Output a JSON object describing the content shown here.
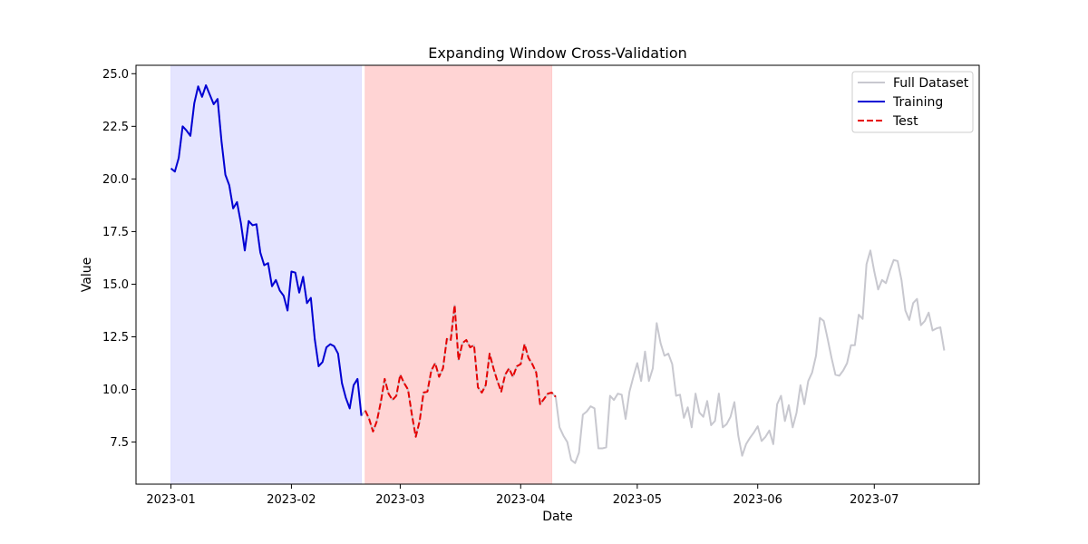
{
  "chart_data": {
    "type": "line",
    "title": "Expanding Window Cross-Validation",
    "xlabel": "Date",
    "ylabel": "Value",
    "ylim": [
      5.5,
      25.4
    ],
    "xlim": [
      "2022-12-23",
      "2023-07-28"
    ],
    "x_ticks": [
      "2023-01-01",
      "2023-02-01",
      "2023-03-01",
      "2023-04-01",
      "2023-05-01",
      "2023-06-01",
      "2023-07-01"
    ],
    "x_tick_labels": [
      "2023-01",
      "2023-02",
      "2023-03",
      "2023-04",
      "2023-05",
      "2023-06",
      "2023-07"
    ],
    "y_ticks": [
      7.5,
      10.0,
      12.5,
      15.0,
      17.5,
      20.0,
      22.5,
      25.0
    ],
    "y_tick_labels": [
      "7.5",
      "10.0",
      "12.5",
      "15.0",
      "17.5",
      "20.0",
      "22.5",
      "25.0"
    ],
    "grid": false,
    "legend_position": "top-right",
    "start_date": "2023-01-01",
    "spans": [
      {
        "name": "training-span",
        "start": "2023-01-01",
        "end": "2023-02-19",
        "color": "#e0e0ff"
      },
      {
        "name": "test-span",
        "start": "2023-02-20",
        "end": "2023-04-09",
        "color": "#ffcccc"
      }
    ],
    "series": [
      {
        "name": "Full Dataset",
        "color": "#c8c8cf",
        "style": "solid",
        "start_index": 0,
        "values": [
          20.5,
          20.35,
          21.0,
          22.5,
          22.3,
          22.05,
          23.6,
          24.4,
          23.9,
          24.45,
          24.0,
          23.55,
          23.8,
          21.8,
          20.2,
          19.7,
          18.6,
          18.9,
          17.9,
          16.6,
          18.0,
          17.8,
          17.85,
          16.5,
          15.9,
          16.0,
          14.9,
          15.2,
          14.7,
          14.45,
          13.75,
          15.6,
          15.55,
          14.6,
          15.35,
          14.1,
          14.35,
          12.4,
          11.1,
          11.3,
          12.0,
          12.15,
          12.05,
          11.7,
          10.3,
          9.6,
          9.1,
          10.2,
          10.5,
          8.75,
          9.0,
          8.6,
          8.0,
          8.5,
          9.4,
          10.5,
          9.8,
          9.5,
          9.7,
          10.7,
          10.3,
          10.0,
          8.8,
          7.75,
          8.5,
          9.85,
          9.9,
          10.9,
          11.25,
          10.6,
          11.0,
          12.4,
          12.35,
          14.0,
          11.4,
          12.2,
          12.35,
          12.0,
          12.1,
          10.1,
          9.85,
          10.2,
          11.7,
          11.0,
          10.4,
          9.9,
          10.7,
          11.0,
          10.6,
          11.1,
          11.2,
          12.15,
          11.5,
          11.2,
          10.8,
          9.3,
          9.55,
          9.8,
          9.85,
          9.65,
          8.2,
          7.8,
          7.5,
          6.65,
          6.5,
          7.0,
          8.8,
          8.95,
          9.2,
          9.1,
          7.2,
          7.2,
          7.25,
          9.7,
          9.5,
          9.8,
          9.75,
          8.6,
          9.9,
          10.6,
          11.25,
          10.4,
          11.8,
          10.4,
          11.0,
          13.15,
          12.2,
          11.6,
          11.7,
          11.2,
          9.7,
          9.75,
          8.65,
          9.15,
          8.2,
          9.8,
          8.9,
          8.7,
          9.45,
          8.3,
          8.5,
          9.8,
          8.2,
          8.35,
          8.7,
          9.4,
          7.8,
          6.85,
          7.4,
          7.7,
          7.95,
          8.25,
          7.55,
          7.75,
          8.05,
          7.4,
          9.3,
          9.7,
          8.5,
          9.25,
          8.2,
          8.9,
          10.2,
          9.3,
          10.4,
          10.8,
          11.6,
          13.4,
          13.25,
          12.4,
          11.5,
          10.7,
          10.65,
          10.9,
          11.25,
          12.1,
          12.1,
          13.55,
          13.35,
          15.95,
          16.6,
          15.6,
          14.75,
          15.2,
          15.05,
          15.65,
          16.15,
          16.1,
          15.2,
          13.75,
          13.3,
          14.1,
          14.3,
          13.05,
          13.25,
          13.65,
          12.8,
          12.9,
          12.95,
          11.85
        ]
      },
      {
        "name": "Training",
        "color": "#0000d4",
        "style": "solid",
        "start_index": 0,
        "values": [
          20.5,
          20.35,
          21.0,
          22.5,
          22.3,
          22.05,
          23.6,
          24.4,
          23.9,
          24.45,
          24.0,
          23.55,
          23.8,
          21.8,
          20.2,
          19.7,
          18.6,
          18.9,
          17.9,
          16.6,
          18.0,
          17.8,
          17.85,
          16.5,
          15.9,
          16.0,
          14.9,
          15.2,
          14.7,
          14.45,
          13.75,
          15.6,
          15.55,
          14.6,
          15.35,
          14.1,
          14.35,
          12.4,
          11.1,
          11.3,
          12.0,
          12.15,
          12.05,
          11.7,
          10.3,
          9.6,
          9.1,
          10.2,
          10.5,
          8.75
        ]
      },
      {
        "name": "Test",
        "color": "#e60000",
        "style": "dashed",
        "start_index": 50,
        "values": [
          9.0,
          8.6,
          8.0,
          8.5,
          9.4,
          10.5,
          9.8,
          9.5,
          9.7,
          10.7,
          10.3,
          10.0,
          8.8,
          7.75,
          8.5,
          9.85,
          9.9,
          10.9,
          11.25,
          10.6,
          11.0,
          12.4,
          12.35,
          14.0,
          11.4,
          12.2,
          12.35,
          12.0,
          12.1,
          10.1,
          9.85,
          10.2,
          11.7,
          11.0,
          10.4,
          9.9,
          10.7,
          11.0,
          10.6,
          11.1,
          11.2,
          12.15,
          11.5,
          11.2,
          10.8,
          9.3,
          9.55,
          9.8,
          9.85,
          9.65
        ]
      }
    ]
  }
}
